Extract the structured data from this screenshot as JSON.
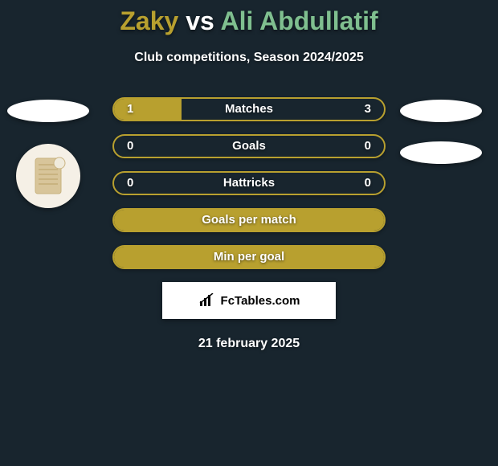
{
  "title_parts": {
    "p1": "Zaky",
    "vs": "vs",
    "p2": "Ali Abdullatif"
  },
  "subtitle": "Club competitions, Season 2024/2025",
  "colors": {
    "title_p1": "#b8a02f",
    "title_vs": "#ffffff",
    "title_p2": "#7fbf8f",
    "bar": "#b8a02f"
  },
  "rows": [
    {
      "label": "Matches",
      "left": "1",
      "right": "3",
      "fill_pct": 25,
      "show_vals": true
    },
    {
      "label": "Goals",
      "left": "0",
      "right": "0",
      "fill_pct": 0,
      "show_vals": true
    },
    {
      "label": "Hattricks",
      "left": "0",
      "right": "0",
      "fill_pct": 0,
      "show_vals": true
    },
    {
      "label": "Goals per match",
      "left": "",
      "right": "",
      "fill_pct": 100,
      "show_vals": false
    },
    {
      "label": "Min per goal",
      "left": "",
      "right": "",
      "fill_pct": 100,
      "show_vals": false
    }
  ],
  "badge_text": "FcTables.com",
  "date_text": "21 february 2025"
}
